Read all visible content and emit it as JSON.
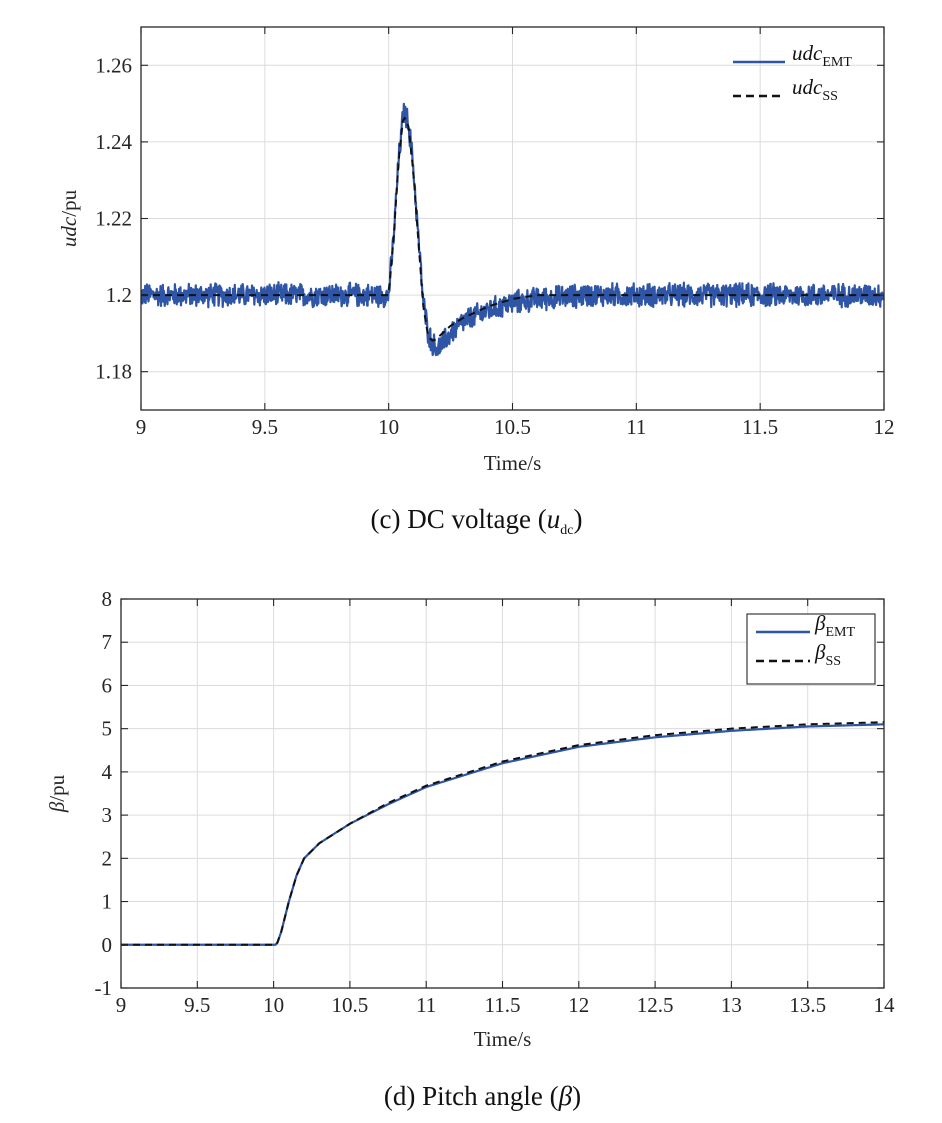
{
  "colors": {
    "emt": "#2e55a6",
    "ss": "#111111",
    "grid": "#dcdcdc",
    "axis": "#262626"
  },
  "chart_data": [
    {
      "type": "line",
      "panel_label": "(c) DC voltage (",
      "panel_symbol": "u",
      "panel_symbol_sub": "dc",
      "panel_close": ")",
      "xlabel": "Time/s",
      "ylabel_symbol": "udc",
      "ylabel_unit": "/pu",
      "xlim": [
        9,
        12
      ],
      "ylim": [
        1.17,
        1.27
      ],
      "xticks": [
        9,
        9.5,
        10,
        10.5,
        11,
        11.5,
        12
      ],
      "xtick_labels": [
        "9",
        "9.5",
        "10",
        "10.5",
        "11",
        "11.5",
        "12"
      ],
      "yticks": [
        1.18,
        1.2,
        1.22,
        1.24,
        1.26
      ],
      "ytick_labels": [
        "1.18",
        "1.2",
        "1.22",
        "1.24",
        "1.26"
      ],
      "grid": true,
      "legend": {
        "placement": "top-right",
        "boxed": false
      },
      "series": [
        {
          "name": "udc",
          "subscript": "EMT",
          "style": "solid",
          "color": "#2e55a6",
          "noise_amplitude": 0.0035,
          "x": [
            9,
            10.0,
            10.02,
            10.04,
            10.06,
            10.08,
            10.1,
            10.12,
            10.14,
            10.16,
            10.18,
            10.2,
            10.25,
            10.3,
            10.4,
            10.5,
            10.6,
            10.8,
            11,
            12
          ],
          "y": [
            1.2,
            1.2,
            1.215,
            1.235,
            1.248,
            1.245,
            1.233,
            1.215,
            1.198,
            1.19,
            1.187,
            1.186,
            1.19,
            1.193,
            1.196,
            1.198,
            1.199,
            1.2,
            1.2,
            1.2
          ]
        },
        {
          "name": "udc",
          "subscript": "SS",
          "style": "dashed",
          "color": "#111111",
          "x": [
            9,
            10.0,
            10.02,
            10.04,
            10.06,
            10.08,
            10.1,
            10.12,
            10.14,
            10.16,
            10.18,
            10.2,
            10.25,
            10.3,
            10.4,
            10.5,
            10.6,
            10.8,
            11,
            12
          ],
          "y": [
            1.2,
            1.2,
            1.215,
            1.235,
            1.247,
            1.244,
            1.232,
            1.214,
            1.197,
            1.189,
            1.188,
            1.189,
            1.192,
            1.194,
            1.197,
            1.199,
            1.2,
            1.2,
            1.2,
            1.2
          ]
        }
      ]
    },
    {
      "type": "line",
      "panel_label": "(d) Pitch angle (",
      "panel_symbol": "β",
      "panel_symbol_sub": "",
      "panel_close": ")",
      "xlabel": "Time/s",
      "ylabel_symbol": "β",
      "ylabel_unit": "/pu",
      "xlim": [
        9,
        14
      ],
      "ylim": [
        -1,
        8
      ],
      "xticks": [
        9,
        9.5,
        10,
        10.5,
        11,
        11.5,
        12,
        12.5,
        13,
        13.5,
        14
      ],
      "xtick_labels": [
        "9",
        "9.5",
        "10",
        "10.5",
        "11",
        "11.5",
        "12",
        "12.5",
        "13",
        "13.5",
        "14"
      ],
      "yticks": [
        -1,
        0,
        1,
        2,
        3,
        4,
        5,
        6,
        7,
        8
      ],
      "ytick_labels": [
        "-1",
        "0",
        "1",
        "2",
        "3",
        "4",
        "5",
        "6",
        "7",
        "8"
      ],
      "grid": true,
      "legend": {
        "placement": "top-right",
        "boxed": true
      },
      "series": [
        {
          "name": "β",
          "subscript": "EMT",
          "style": "solid",
          "color": "#2e55a6",
          "x": [
            9,
            10.0,
            10.02,
            10.05,
            10.1,
            10.15,
            10.2,
            10.3,
            10.5,
            10.75,
            11,
            11.5,
            12,
            12.5,
            13,
            13.5,
            14
          ],
          "y": [
            0,
            0,
            0.0,
            0.3,
            1.0,
            1.6,
            2.0,
            2.35,
            2.8,
            3.25,
            3.65,
            4.2,
            4.58,
            4.8,
            4.95,
            5.05,
            5.1
          ]
        },
        {
          "name": "β",
          "subscript": "SS",
          "style": "dashed",
          "color": "#111111",
          "x": [
            9,
            10.0,
            10.02,
            10.05,
            10.1,
            10.15,
            10.2,
            10.3,
            10.5,
            10.75,
            11,
            11.5,
            12,
            12.5,
            13,
            13.5,
            14
          ],
          "y": [
            0,
            0,
            0.0,
            0.3,
            1.0,
            1.6,
            2.0,
            2.35,
            2.8,
            3.28,
            3.68,
            4.24,
            4.62,
            4.85,
            5.0,
            5.1,
            5.15
          ]
        }
      ]
    }
  ]
}
